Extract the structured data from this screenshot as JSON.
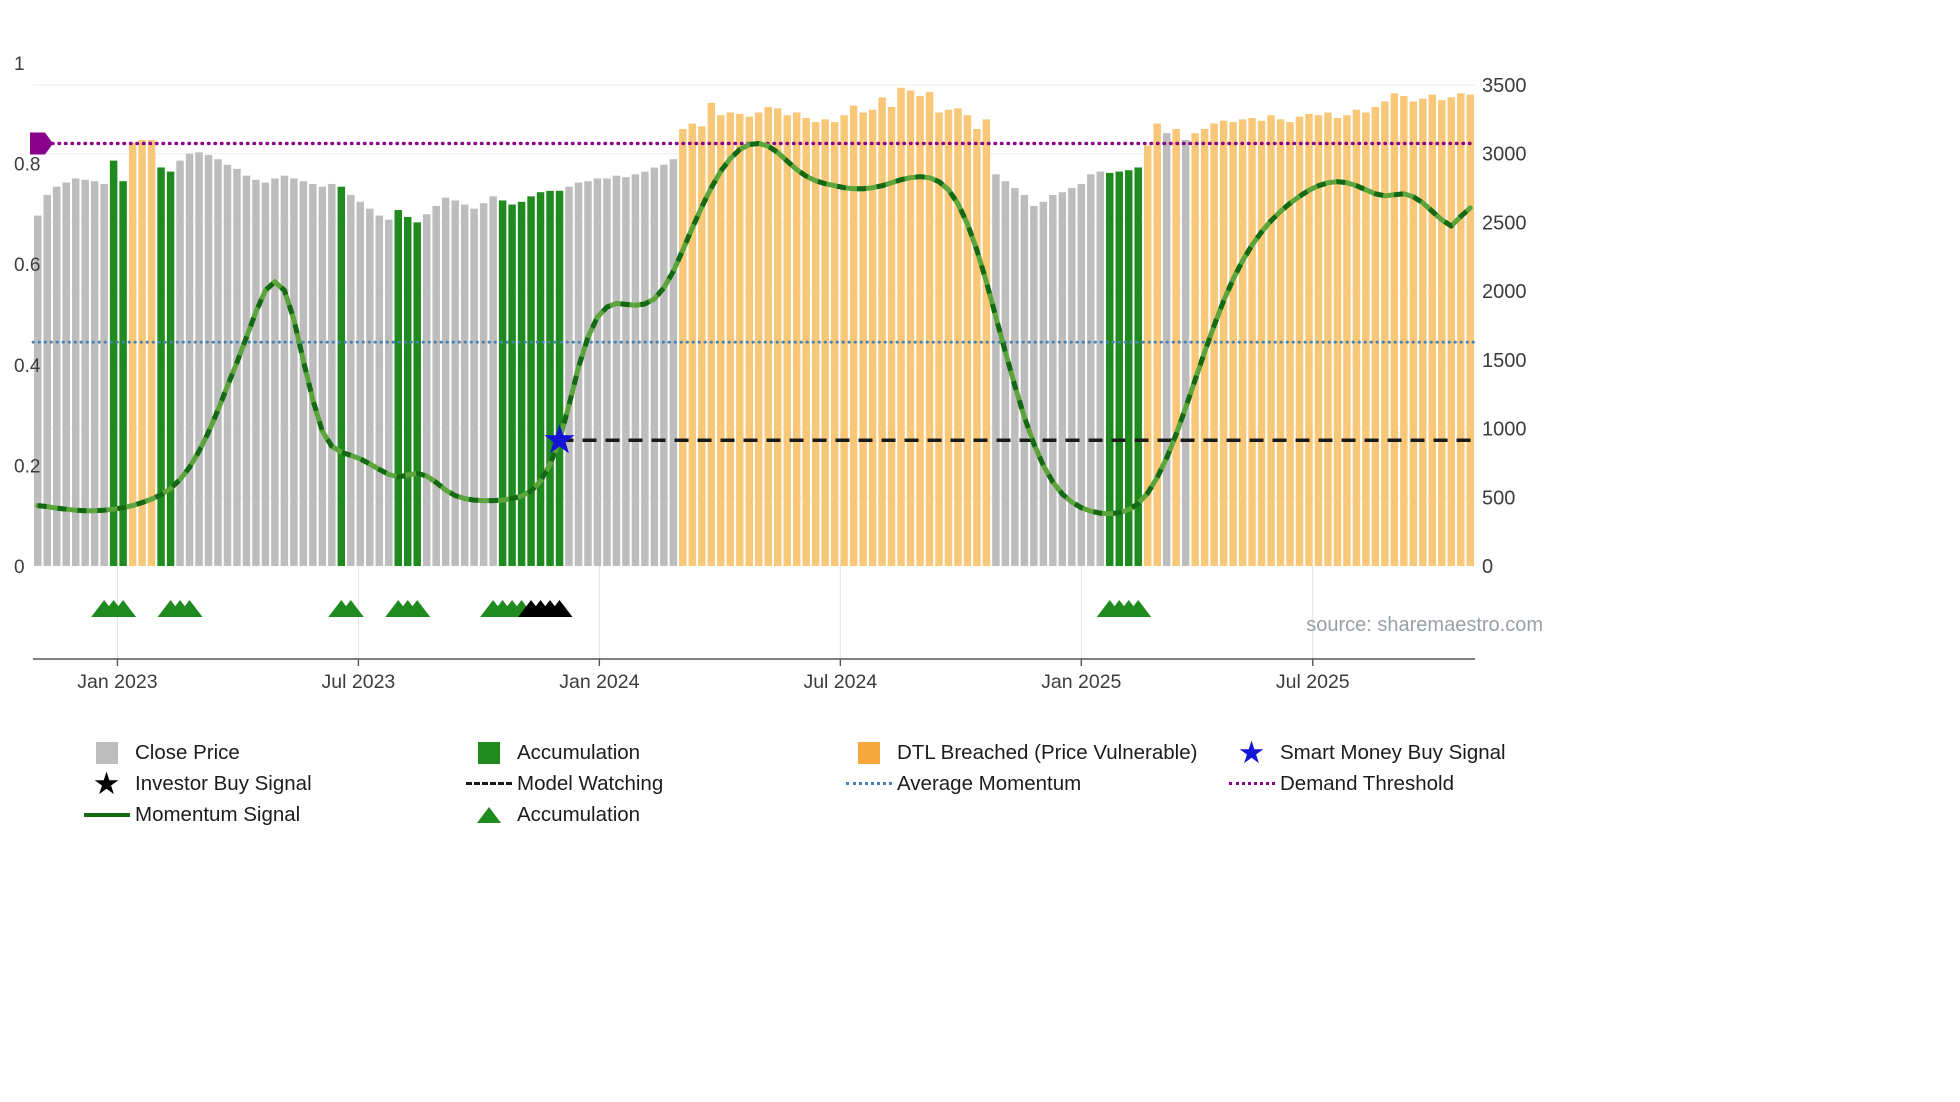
{
  "source": "source: sharemaestro.com",
  "colors": {
    "close": "#bdbdbd",
    "accumulation": "#1f8b1f",
    "dtl_bar": "#f8c878",
    "dtl_legend": "#f5a93b",
    "momentum_light": "#5ba53c",
    "momentum_dark": "#146914",
    "average_momentum": "#4682b4",
    "demand_threshold": "#8b008b",
    "model_watching": "#1a1a1a",
    "smart_money": "#1414d4",
    "investor": "#000000",
    "axis_text": "#3c3c3c",
    "grid": "#ededed"
  },
  "chart_data": {
    "type": "bar+line",
    "title": "",
    "left_axis": {
      "range": [
        0,
        1
      ],
      "ticks": [
        0,
        0.2,
        0.4,
        0.6,
        0.8,
        1
      ]
    },
    "right_axis": {
      "range": [
        0,
        3500
      ],
      "ticks": [
        0,
        500,
        1000,
        1500,
        2000,
        2500,
        3000,
        3500
      ],
      "max": 3500
    },
    "x_ticks": [
      {
        "label": "Jan 2023",
        "pos": 8.4
      },
      {
        "label": "Jul 2023",
        "pos": 33.8
      },
      {
        "label": "Jan 2024",
        "pos": 59.2
      },
      {
        "label": "Jul 2024",
        "pos": 84.6
      },
      {
        "label": "Jan 2025",
        "pos": 110.0
      },
      {
        "label": "Jul 2025",
        "pos": 134.4
      }
    ],
    "bars": {
      "name": "Close Price (weekly)",
      "color_map": {
        "g": "close",
        "G": "accumulation",
        "o": "dtl_bar"
      },
      "color_runs": [
        [
          8,
          "g"
        ],
        [
          2,
          "G"
        ],
        [
          3,
          "o"
        ],
        [
          2,
          "G"
        ],
        [
          17,
          "g"
        ],
        [
          1,
          "G"
        ],
        [
          5,
          "g"
        ],
        [
          3,
          "G"
        ],
        [
          8,
          "g"
        ],
        [
          7,
          "G"
        ],
        [
          12,
          "g"
        ],
        [
          33,
          "o"
        ],
        [
          12,
          "g"
        ],
        [
          4,
          "G"
        ],
        [
          1,
          "o"
        ],
        [
          1,
          "o"
        ],
        [
          1,
          "g"
        ],
        [
          1,
          "o"
        ],
        [
          1,
          "g"
        ],
        [
          1,
          "o"
        ],
        [
          29,
          "o"
        ]
      ],
      "values": [
        2550,
        2700,
        2760,
        2790,
        2820,
        2810,
        2800,
        2780,
        2950,
        2800,
        3080,
        3100,
        3100,
        2900,
        2870,
        2950,
        3000,
        3010,
        2990,
        2960,
        2920,
        2890,
        2840,
        2810,
        2790,
        2820,
        2840,
        2820,
        2800,
        2780,
        2760,
        2780,
        2760,
        2700,
        2650,
        2600,
        2550,
        2520,
        2590,
        2540,
        2500,
        2560,
        2620,
        2680,
        2660,
        2630,
        2600,
        2640,
        2690,
        2660,
        2630,
        2650,
        2690,
        2720,
        2730,
        2730,
        2760,
        2790,
        2800,
        2820,
        2820,
        2840,
        2830,
        2850,
        2870,
        2900,
        2920,
        2960,
        3180,
        3220,
        3200,
        3370,
        3280,
        3300,
        3290,
        3270,
        3300,
        3340,
        3330,
        3280,
        3300,
        3260,
        3230,
        3250,
        3230,
        3280,
        3350,
        3300,
        3320,
        3410,
        3340,
        3480,
        3460,
        3420,
        3450,
        3300,
        3320,
        3330,
        3280,
        3180,
        3250,
        2850,
        2800,
        2750,
        2700,
        2620,
        2650,
        2700,
        2720,
        2750,
        2780,
        2850,
        2870,
        2860,
        2870,
        2880,
        2900,
        3060,
        3220,
        3150,
        3180,
        3100,
        3150,
        3180,
        3220,
        3240,
        3230,
        3250,
        3260,
        3240,
        3280,
        3250,
        3230,
        3270,
        3290,
        3280,
        3300,
        3260,
        3280,
        3320,
        3300,
        3340,
        3380,
        3440,
        3420,
        3380,
        3400,
        3430,
        3390,
        3410,
        3440,
        3430
      ]
    },
    "momentum": {
      "name": "Momentum Signal",
      "values": [
        0.12,
        0.118,
        0.115,
        0.113,
        0.111,
        0.11,
        0.11,
        0.111,
        0.113,
        0.116,
        0.12,
        0.126,
        0.133,
        0.142,
        0.154,
        0.172,
        0.196,
        0.228,
        0.266,
        0.31,
        0.358,
        0.405,
        0.455,
        0.505,
        0.548,
        0.565,
        0.548,
        0.49,
        0.408,
        0.33,
        0.268,
        0.238,
        0.226,
        0.22,
        0.213,
        0.203,
        0.192,
        0.182,
        0.177,
        0.181,
        0.184,
        0.179,
        0.166,
        0.151,
        0.14,
        0.134,
        0.131,
        0.13,
        0.13,
        0.131,
        0.134,
        0.139,
        0.149,
        0.169,
        0.202,
        0.25,
        0.32,
        0.395,
        0.455,
        0.495,
        0.515,
        0.522,
        0.52,
        0.518,
        0.521,
        0.531,
        0.553,
        0.586,
        0.628,
        0.672,
        0.714,
        0.752,
        0.785,
        0.81,
        0.828,
        0.838,
        0.84,
        0.835,
        0.822,
        0.805,
        0.788,
        0.775,
        0.766,
        0.76,
        0.756,
        0.752,
        0.75,
        0.75,
        0.752,
        0.756,
        0.762,
        0.768,
        0.772,
        0.774,
        0.772,
        0.764,
        0.748,
        0.72,
        0.68,
        0.628,
        0.565,
        0.495,
        0.425,
        0.358,
        0.296,
        0.243,
        0.2,
        0.167,
        0.143,
        0.127,
        0.116,
        0.109,
        0.105,
        0.104,
        0.106,
        0.112,
        0.124,
        0.145,
        0.176,
        0.215,
        0.262,
        0.315,
        0.37,
        0.425,
        0.478,
        0.527,
        0.57,
        0.607,
        0.638,
        0.664,
        0.686,
        0.705,
        0.721,
        0.735,
        0.747,
        0.756,
        0.762,
        0.764,
        0.762,
        0.756,
        0.748,
        0.74,
        0.736,
        0.738,
        0.74,
        0.734,
        0.722,
        0.705,
        0.688,
        0.676,
        0.695,
        0.712
      ]
    },
    "overlays": {
      "demand_threshold_level": 0.84,
      "average_momentum_level": 0.445,
      "model_watching": {
        "start": 55,
        "level": 0.25
      }
    },
    "markers": {
      "smart_money_buy": {
        "pos": 55,
        "level": 0.25
      },
      "demand_threshold_marker": {
        "level": 0.84
      },
      "accumulation_triangles": [
        7,
        8,
        9,
        14,
        15,
        16,
        32,
        33,
        38,
        39,
        40,
        48,
        49,
        50,
        51,
        113,
        114,
        115,
        116
      ],
      "investor_triangles": [
        52,
        53,
        54,
        55
      ]
    }
  },
  "legend": {
    "rows": [
      [
        {
          "swatch": "square",
          "color": "close",
          "label": "Close Price"
        },
        {
          "swatch": "square",
          "color": "accumulation",
          "label": "Accumulation"
        },
        {
          "swatch": "square",
          "color": "dtl_legend",
          "label": "DTL Breached (Price Vulnerable)"
        },
        {
          "swatch": "star",
          "color": "smart_money",
          "label": "Smart Money Buy Signal"
        }
      ],
      [
        {
          "swatch": "star",
          "color": "investor",
          "label": "Investor Buy Signal"
        },
        {
          "swatch": "dashed",
          "color": "model_watching",
          "label": "Model Watching"
        },
        {
          "swatch": "dotted",
          "color": "average_momentum",
          "label": "Average Momentum"
        },
        {
          "swatch": "dotted",
          "color": "demand_threshold",
          "label": "Demand Threshold"
        }
      ],
      [
        {
          "swatch": "line",
          "color": "momentum_dark",
          "label": "Momentum Signal"
        },
        {
          "swatch": "triangle",
          "color": "accumulation",
          "label": "Accumulation"
        }
      ]
    ]
  }
}
